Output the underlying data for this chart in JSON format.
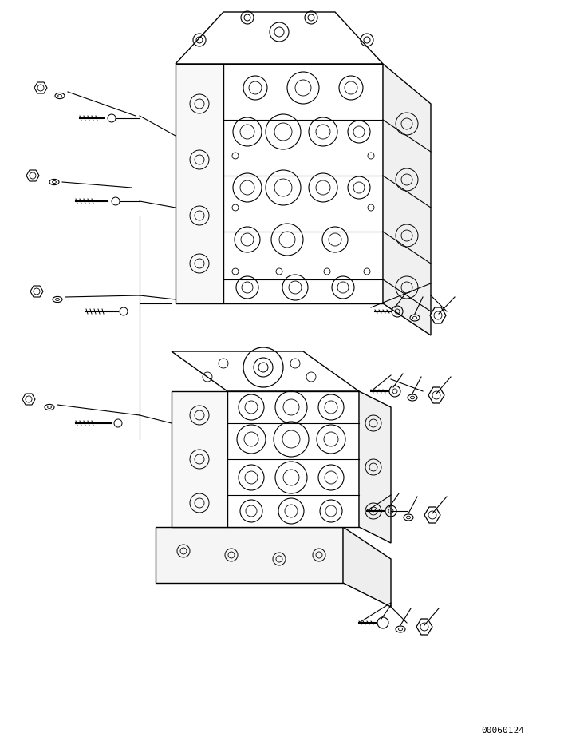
{
  "background_color": "#ffffff",
  "line_color": "#000000",
  "fig_width": 7.07,
  "fig_height": 9.33,
  "dpi": 100,
  "watermark": "00060124"
}
